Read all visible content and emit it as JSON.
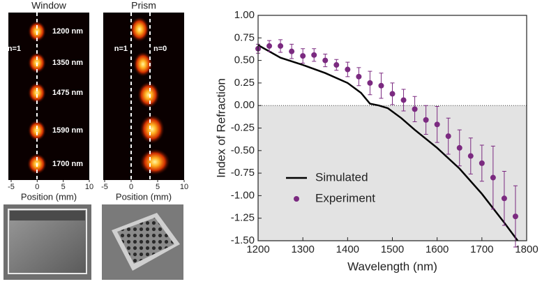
{
  "chart_data": [
    {
      "type": "image",
      "title": "Window",
      "xlabel": "Position (mm)",
      "xlim": [
        -5,
        10
      ],
      "xticks": [
        -5,
        0,
        5,
        10
      ],
      "annotations": [
        "n=1",
        "1200 nm",
        "1350 nm",
        "1475 nm",
        "1590 nm",
        "1700 nm"
      ]
    },
    {
      "type": "image",
      "title": "Prism",
      "xlabel": "Position (mm)",
      "xlim": [
        -5,
        10
      ],
      "xticks": [
        -5,
        0,
        5,
        10
      ],
      "annotations": [
        "n=1",
        "n=0"
      ]
    },
    {
      "type": "line",
      "xlabel": "Wavelength (nm)",
      "ylabel": "Index of Refraction",
      "xlim": [
        1200,
        1800
      ],
      "xticks": [
        1200,
        1300,
        1400,
        1500,
        1600,
        1700,
        1800
      ],
      "ylim": [
        -1.5,
        1.0
      ],
      "yticks": [
        {
          "value": -1.5,
          "label": "-1.50"
        },
        -1.25,
        {
          "value": -1.0,
          "label": "-1.00"
        },
        -0.75,
        {
          "value": -0.5,
          "label": "-0.50"
        },
        -0.25,
        {
          "value": 0,
          "label": "0.00"
        },
        0.25,
        {
          "value": 0.5,
          "label": "0.50"
        },
        0.75,
        {
          "value": 1.0,
          "label": "1.00"
        }
      ],
      "legend": "lower left",
      "series": [
        {
          "name": "Simulated",
          "color": "#000000",
          "mode": "line",
          "x": [
            1200,
            1250,
            1300,
            1350,
            1400,
            1430,
            1450,
            1470,
            1490,
            1520,
            1550,
            1600,
            1650,
            1700,
            1750,
            1780
          ],
          "values": [
            0.67,
            0.53,
            0.45,
            0.36,
            0.25,
            0.14,
            0.02,
            0.0,
            -0.03,
            -0.14,
            -0.27,
            -0.47,
            -0.7,
            -0.98,
            -1.3,
            -1.5
          ]
        },
        {
          "name": "Experiment",
          "color": "#7b2a80",
          "mode": "markers",
          "x": [
            1200,
            1225,
            1250,
            1275,
            1300,
            1325,
            1350,
            1375,
            1400,
            1425,
            1450,
            1475,
            1500,
            1525,
            1550,
            1575,
            1600,
            1625,
            1650,
            1675,
            1700,
            1725,
            1750,
            1775
          ],
          "values": [
            0.63,
            0.66,
            0.66,
            0.6,
            0.55,
            0.56,
            0.5,
            0.45,
            0.4,
            0.32,
            0.25,
            0.22,
            0.13,
            0.06,
            -0.04,
            -0.16,
            -0.21,
            -0.34,
            -0.47,
            -0.56,
            -0.64,
            -0.8,
            -1.03,
            -1.23
          ],
          "errors": [
            0.05,
            0.06,
            0.07,
            0.08,
            0.08,
            0.07,
            0.07,
            0.06,
            0.08,
            0.1,
            0.13,
            0.14,
            0.12,
            0.12,
            0.14,
            0.16,
            0.2,
            0.2,
            0.2,
            0.2,
            0.2,
            0.35,
            0.3,
            0.34
          ]
        }
      ]
    }
  ]
}
